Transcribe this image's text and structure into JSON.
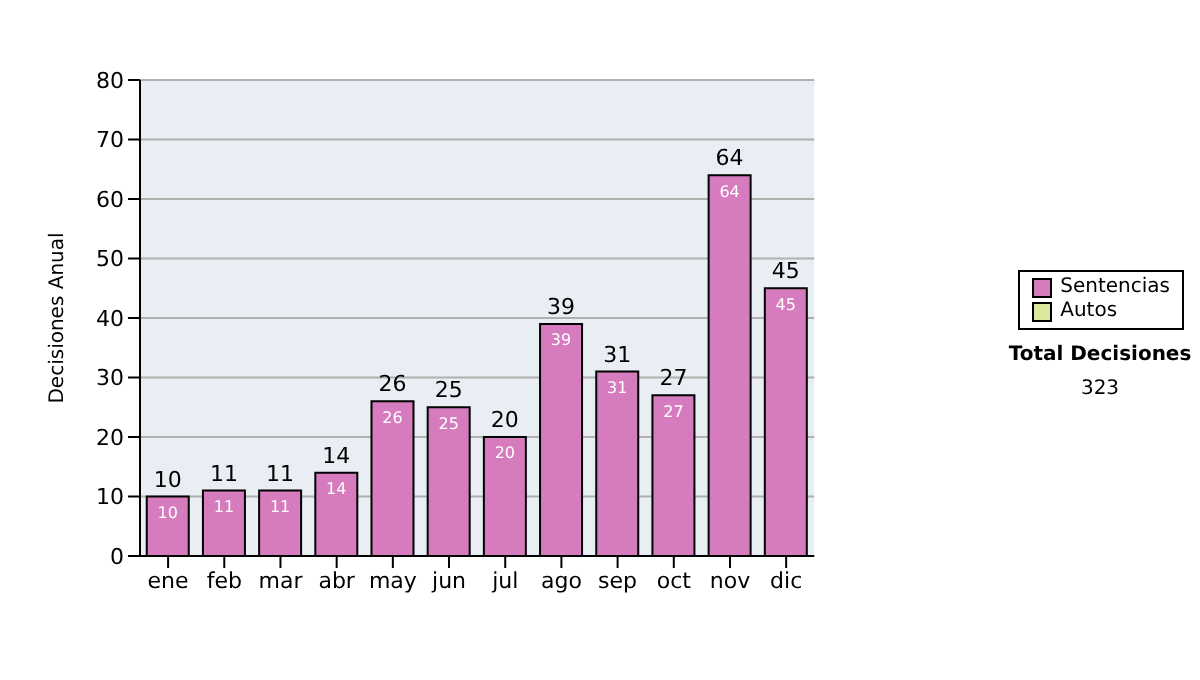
{
  "chart_data": {
    "type": "bar",
    "ylabel": "Decisiones Anual",
    "categories": [
      "ene",
      "feb",
      "mar",
      "abr",
      "may",
      "jun",
      "jul",
      "ago",
      "sep",
      "oct",
      "nov",
      "dic"
    ],
    "series": [
      {
        "name": "Sentencias",
        "color": "#d67bbe",
        "values": [
          10,
          11,
          11,
          14,
          26,
          25,
          20,
          39,
          31,
          27,
          64,
          45
        ]
      },
      {
        "name": "Autos",
        "color": "#d9e89c",
        "values": [
          null,
          null,
          null,
          null,
          null,
          null,
          null,
          null,
          null,
          null,
          null,
          null
        ]
      }
    ],
    "stacked": true,
    "totals": [
      "10",
      "11",
      "11",
      "14",
      "26",
      "25",
      "20",
      "39",
      "31",
      "27",
      "64",
      "45"
    ],
    "ylim": [
      0,
      80
    ],
    "yticks": [
      0,
      10,
      20,
      30,
      40,
      50,
      60,
      70,
      80
    ],
    "grid": "y",
    "legend": "right",
    "data_labels": true,
    "annotations": [
      "Total Decisiones",
      "323"
    ]
  }
}
